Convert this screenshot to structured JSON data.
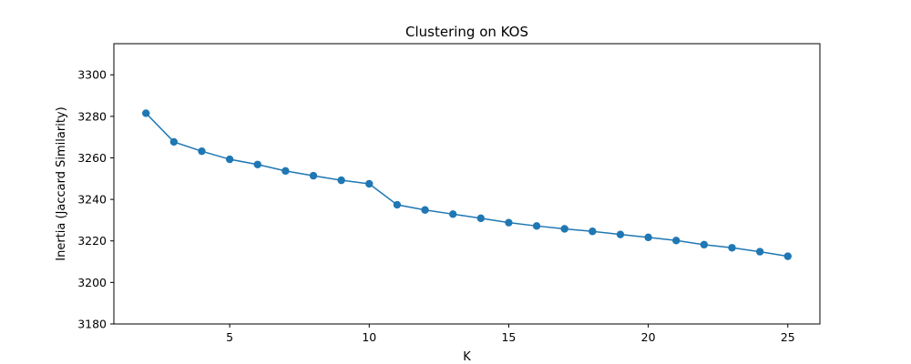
{
  "chart_data": {
    "type": "line",
    "title": "Clustering on KOS",
    "xlabel": "K",
    "ylabel": "Inertia (Jaccard Similarity)",
    "xlim": [
      0.85,
      26.15
    ],
    "ylim": [
      3180,
      3315
    ],
    "xticks": [
      5,
      10,
      15,
      20,
      25
    ],
    "yticks": [
      3180,
      3200,
      3220,
      3240,
      3260,
      3280,
      3300
    ],
    "grid": false,
    "legend": "none",
    "series": [
      {
        "color": "#1f77b4",
        "marker": "circle",
        "x": [
          2,
          3,
          4,
          5,
          6,
          7,
          8,
          9,
          10,
          11,
          12,
          13,
          14,
          15,
          16,
          17,
          18,
          19,
          20,
          21,
          22,
          23,
          24,
          25
        ],
        "y": [
          3281.5,
          3267.7,
          3263.2,
          3259.3,
          3256.8,
          3253.7,
          3251.4,
          3249.2,
          3247.5,
          3237.4,
          3234.9,
          3232.9,
          3230.9,
          3228.8,
          3227.2,
          3225.8,
          3224.6,
          3223.1,
          3221.7,
          3220.2,
          3218.2,
          3216.7,
          3214.8,
          3212.6
        ]
      }
    ]
  }
}
